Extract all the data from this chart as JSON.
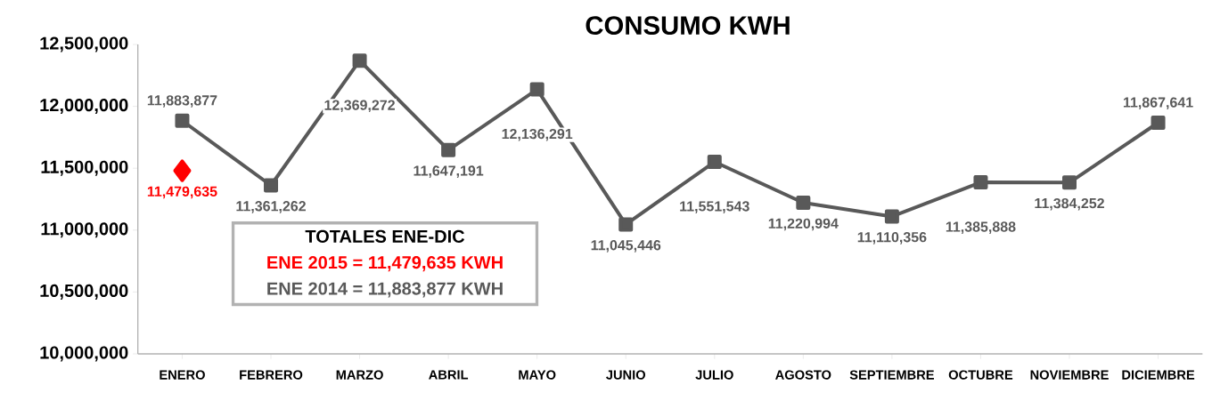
{
  "chart_data": {
    "type": "line",
    "title": "CONSUMO KWH",
    "categories": [
      "ENERO",
      "FEBRERO",
      "MARZO",
      "ABRIL",
      "MAYO",
      "JUNIO",
      "JULIO",
      "AGOSTO",
      "SEPTIEMBRE",
      "OCTUBRE",
      "NOVIEMBRE",
      "DICIEMBRE"
    ],
    "series": [
      {
        "color": "#595959",
        "marker": "square",
        "values": [
          11883877,
          11361262,
          12369272,
          11647191,
          12136291,
          11045446,
          11551543,
          11220994,
          11110356,
          11385888,
          11384252,
          11867641
        ],
        "value_labels": [
          "11,883,877",
          "11,361,262",
          "12,369,272",
          "11,647,191",
          "12,136,291",
          "11,045,446",
          "11,551,543",
          "11,220,994",
          "11,110,356",
          "11,385,888",
          "11,384,252",
          "11,867,641"
        ]
      },
      {
        "color": "#ff0000",
        "marker": "diamond",
        "values": [
          11479635,
          null,
          null,
          null,
          null,
          null,
          null,
          null,
          null,
          null,
          null,
          null
        ],
        "value_labels": [
          "11,479,635",
          null,
          null,
          null,
          null,
          null,
          null,
          null,
          null,
          null,
          null,
          null
        ]
      }
    ],
    "ylim": [
      10000000,
      12500000
    ],
    "yticks": [
      {
        "value": 10000000,
        "label": "10,000,000"
      },
      {
        "value": 10500000,
        "label": "10,500,000"
      },
      {
        "value": 11000000,
        "label": "11,000,000"
      },
      {
        "value": 11500000,
        "label": "11,500,000"
      },
      {
        "value": 12000000,
        "label": "12,000,000"
      },
      {
        "value": 12500000,
        "label": "12,500,000"
      }
    ],
    "grid": false,
    "annotations": [
      "TOTALES ENE-DIC",
      "ENE 2015 = 11,479,635 KWH",
      "ENE 2014 = 11,883,877 KWH"
    ]
  }
}
